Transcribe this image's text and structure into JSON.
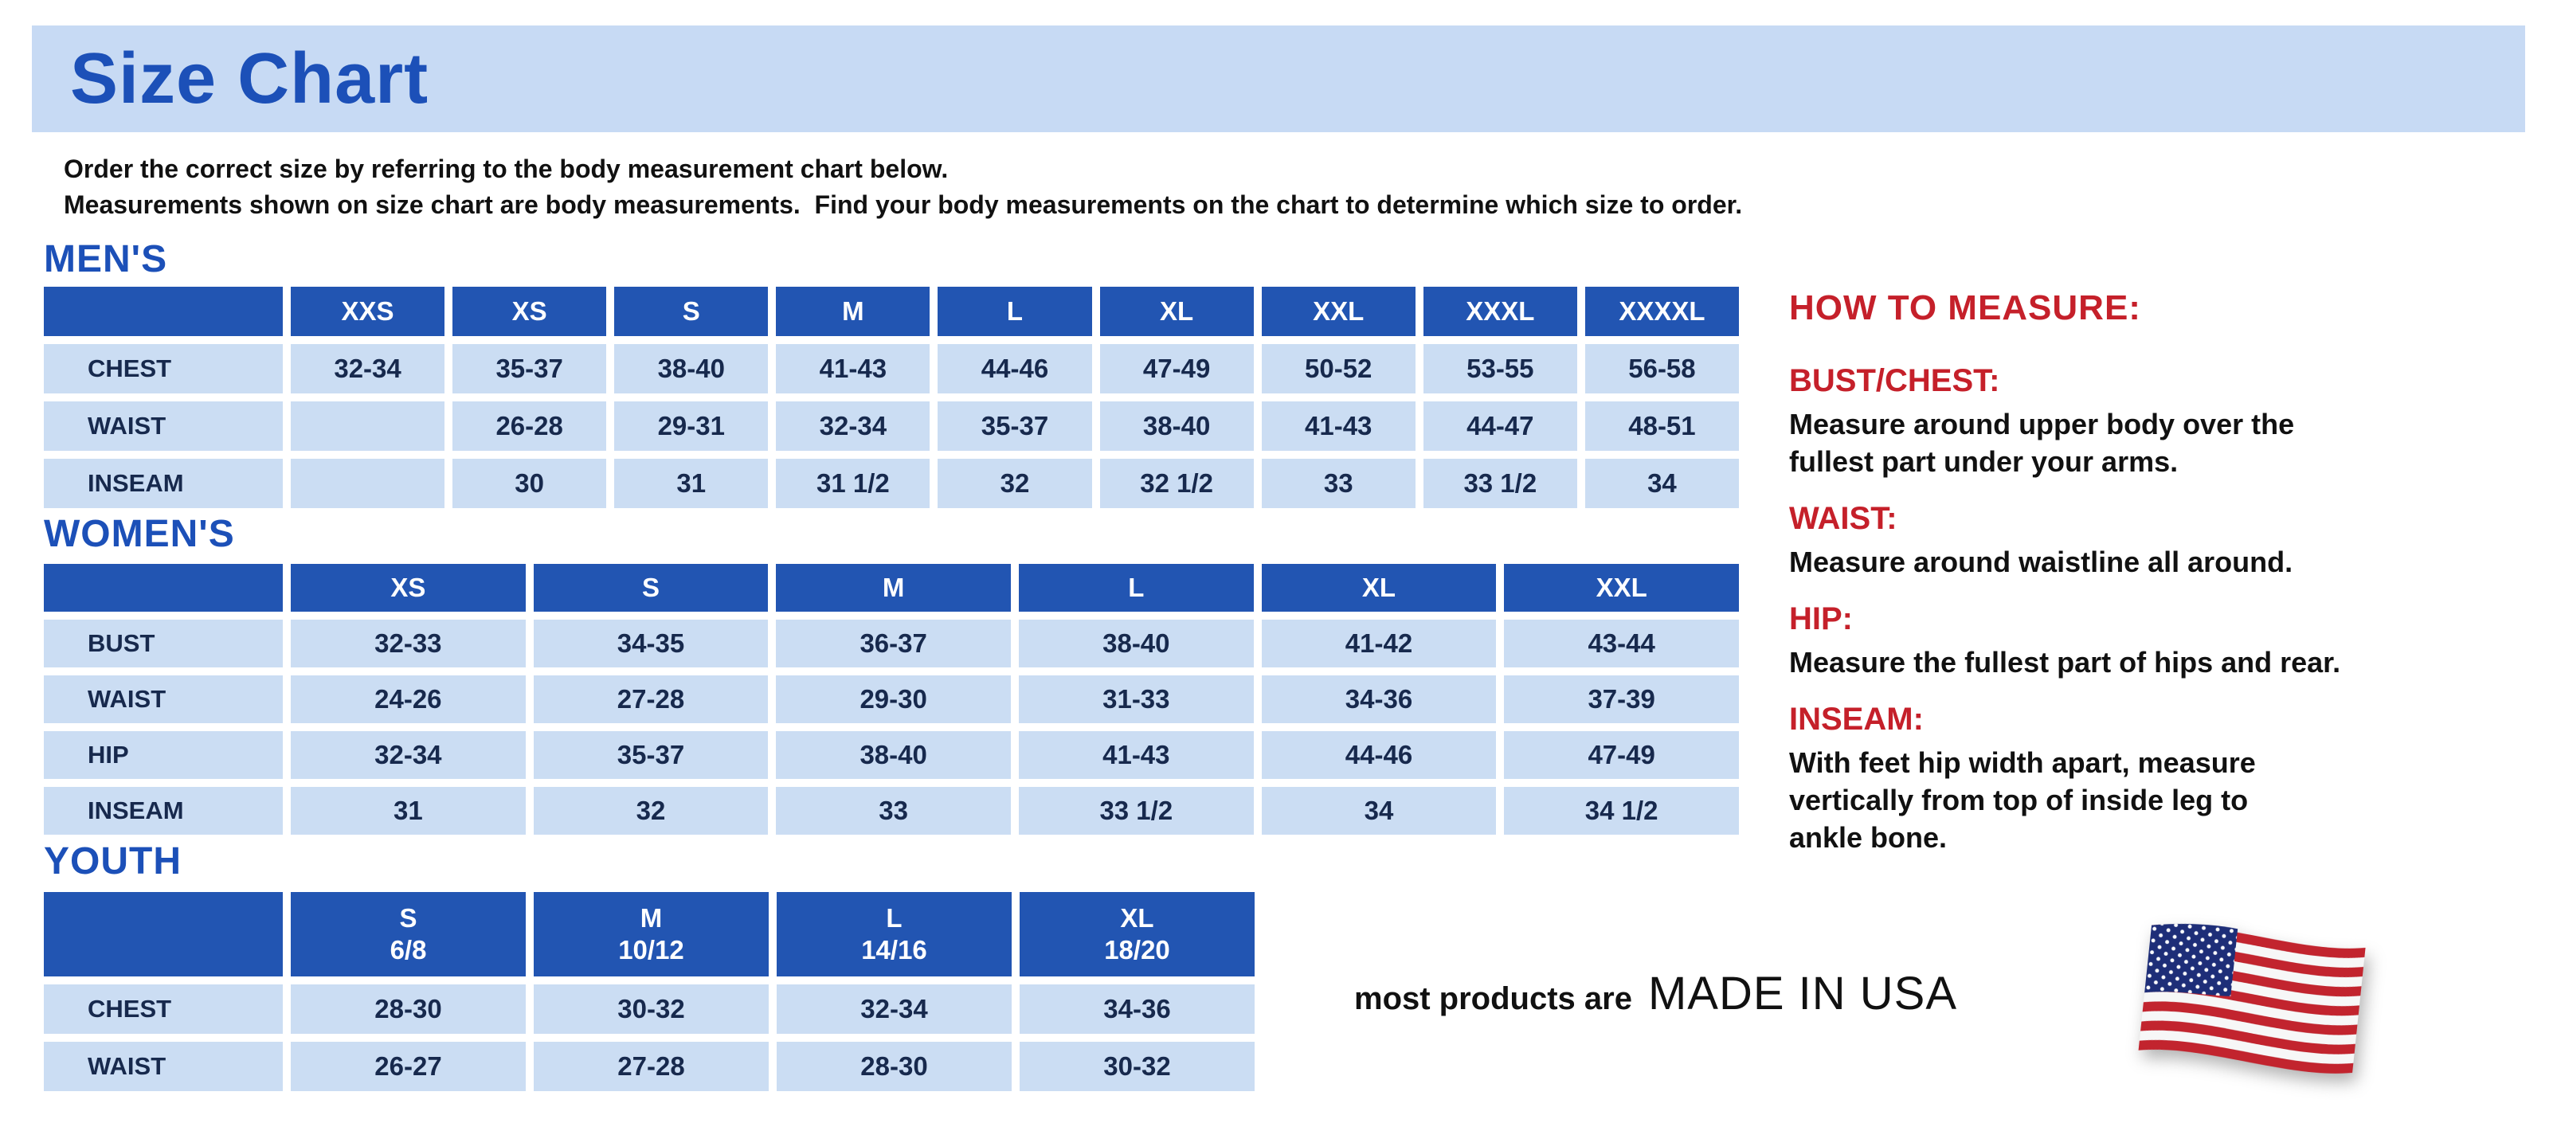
{
  "page": {
    "title": "Size Chart",
    "intro_line1": "Order the correct size by referring to the body measurement chart below.",
    "intro_line2": "Measurements shown on size chart are body measurements.  Find your body measurements on the chart to determine which size to order."
  },
  "colors": {
    "banner_bg": "#c7daf4",
    "heading_blue": "#1c50b8",
    "header_cell_bg": "#2255b2",
    "cell_bg": "#cbddf3",
    "cell_text": "#17294d",
    "accent_red": "#c5202a",
    "text_black": "#111111"
  },
  "tables": {
    "mens": {
      "section_label": "MEN'S",
      "columns": [
        "XXS",
        "XS",
        "S",
        "M",
        "L",
        "XL",
        "XXL",
        "XXXL",
        "XXXXL"
      ],
      "rows": [
        {
          "label": "CHEST",
          "values": [
            "32-34",
            "35-37",
            "38-40",
            "41-43",
            "44-46",
            "47-49",
            "50-52",
            "53-55",
            "56-58"
          ]
        },
        {
          "label": "WAIST",
          "values": [
            "",
            "26-28",
            "29-31",
            "32-34",
            "35-37",
            "38-40",
            "41-43",
            "44-47",
            "48-51"
          ]
        },
        {
          "label": "INSEAM",
          "values": [
            "",
            "30",
            "31",
            "31 1/2",
            "32",
            "32 1/2",
            "33",
            "33 1/2",
            "34"
          ]
        }
      ]
    },
    "womens": {
      "section_label": "WOMEN'S",
      "columns": [
        "XS",
        "S",
        "M",
        "L",
        "XL",
        "XXL"
      ],
      "rows": [
        {
          "label": "BUST",
          "values": [
            "32-33",
            "34-35",
            "36-37",
            "38-40",
            "41-42",
            "43-44"
          ]
        },
        {
          "label": "WAIST",
          "values": [
            "24-26",
            "27-28",
            "29-30",
            "31-33",
            "34-36",
            "37-39"
          ]
        },
        {
          "label": "HIP",
          "values": [
            "32-34",
            "35-37",
            "38-40",
            "41-43",
            "44-46",
            "47-49"
          ]
        },
        {
          "label": "INSEAM",
          "values": [
            "31",
            "32",
            "33",
            "33 1/2",
            "34",
            "34 1/2"
          ]
        }
      ]
    },
    "youth": {
      "section_label": "YOUTH",
      "columns": [
        "S\n6/8",
        "M\n10/12",
        "L\n14/16",
        "XL\n18/20"
      ],
      "rows": [
        {
          "label": "CHEST",
          "values": [
            "28-30",
            "30-32",
            "32-34",
            "34-36"
          ]
        },
        {
          "label": "WAIST",
          "values": [
            "26-27",
            "27-28",
            "28-30",
            "30-32"
          ]
        }
      ]
    }
  },
  "how_to_measure": {
    "title": "HOW TO MEASURE:",
    "items": [
      {
        "label": "BUST/CHEST:",
        "text": "Measure around upper body over the\nfullest part under your arms."
      },
      {
        "label": "WAIST:",
        "text": "Measure around waistline all around."
      },
      {
        "label": "HIP:",
        "text": "Measure the fullest part of hips and rear."
      },
      {
        "label": "INSEAM:",
        "text": "With feet hip width apart, measure\nvertically from top of inside leg to\nankle bone."
      }
    ]
  },
  "footer": {
    "prefix": "most products are",
    "made_in": "MADE IN USA",
    "flag_icon": "us-flag-icon"
  }
}
